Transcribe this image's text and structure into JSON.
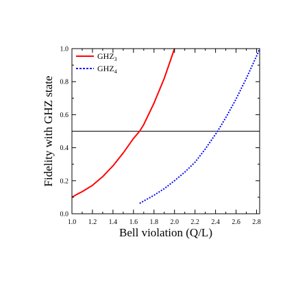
{
  "chart_data": {
    "type": "line",
    "xlabel": "Bell violation (Q/L)",
    "ylabel": "Fidelity with GHZ state",
    "xlim": [
      1.0,
      2.83
    ],
    "ylim": [
      0.0,
      1.0
    ],
    "x_ticks": [
      "1.0",
      "1.2",
      "1.4",
      "1.6",
      "1.8",
      "2.0",
      "2.2",
      "2.4",
      "2.6",
      "2.8"
    ],
    "y_ticks": [
      "0.0",
      "0.2",
      "0.4",
      "0.6",
      "0.8",
      "1.0"
    ],
    "legend_position": "top-left",
    "reference_line": {
      "y": 0.5
    },
    "series": [
      {
        "name": "GHZ",
        "subscript": "3",
        "color": "#ff0000",
        "style": "solid",
        "x": [
          1.0,
          1.05,
          1.1,
          1.2,
          1.3,
          1.4,
          1.5,
          1.6,
          1.66,
          1.7,
          1.8,
          1.9,
          2.0
        ],
        "y": [
          0.1,
          0.118,
          0.134,
          0.172,
          0.225,
          0.29,
          0.368,
          0.456,
          0.5,
          0.54,
          0.67,
          0.82,
          1.0
        ]
      },
      {
        "name": "GHZ",
        "subscript": "4",
        "color": "#0000ff",
        "style": "dotted",
        "x": [
          1.66,
          1.8,
          1.9,
          2.0,
          2.1,
          2.2,
          2.3,
          2.42,
          2.5,
          2.6,
          2.7,
          2.8,
          2.83
        ],
        "y": [
          0.063,
          0.112,
          0.152,
          0.2,
          0.252,
          0.312,
          0.392,
          0.5,
          0.582,
          0.695,
          0.82,
          0.955,
          1.0
        ]
      }
    ]
  }
}
